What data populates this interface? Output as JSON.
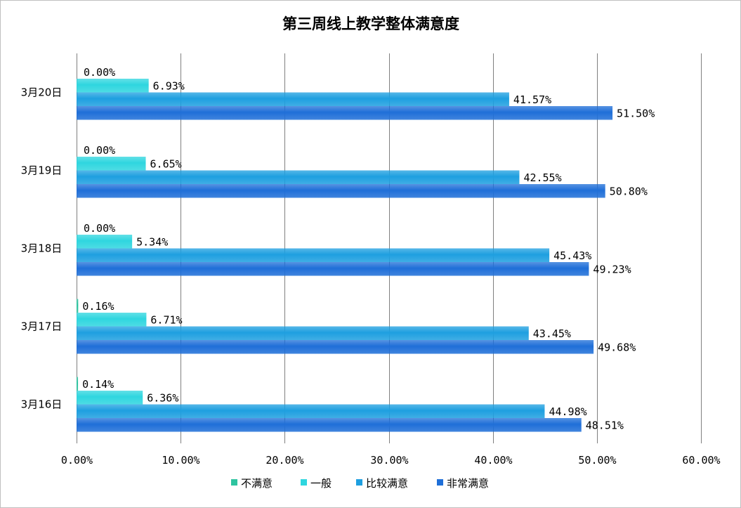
{
  "chart_data": {
    "type": "bar",
    "orientation": "horizontal",
    "title": "第三周线上教学整体满意度",
    "categories": [
      "3月20日",
      "3月19日",
      "3月18日",
      "3月17日",
      "3月16日"
    ],
    "series": [
      {
        "name": "不满意",
        "color": "#2ec4a0",
        "values": [
          0.0,
          0.0,
          0.0,
          0.16,
          0.14
        ],
        "labels": [
          "0.00%",
          "0.00%",
          "0.00%",
          "0.16%",
          "0.14%"
        ]
      },
      {
        "name": "一般",
        "color": "#2fd6df",
        "values": [
          6.93,
          6.65,
          5.34,
          6.71,
          6.36
        ],
        "labels": [
          "6.93%",
          "6.65%",
          "5.34%",
          "6.71%",
          "6.36%"
        ]
      },
      {
        "name": "比较满意",
        "color": "#1e9fe0",
        "values": [
          41.57,
          42.55,
          45.43,
          43.45,
          44.98
        ],
        "labels": [
          "41.57%",
          "42.55%",
          "45.43%",
          "43.45%",
          "44.98%"
        ]
      },
      {
        "name": "非常满意",
        "color": "#1f6fd8",
        "values": [
          51.5,
          50.8,
          49.23,
          49.68,
          48.51
        ],
        "labels": [
          "51.50%",
          "50.80%",
          "49.23%",
          "49.68%",
          "48.51%"
        ]
      }
    ],
    "xlim": [
      0,
      60
    ],
    "xticks": [
      0,
      10,
      20,
      30,
      40,
      50,
      60
    ],
    "xtick_labels": [
      "0.00%",
      "10.00%",
      "20.00%",
      "30.00%",
      "40.00%",
      "50.00%",
      "60.00%"
    ],
    "grid": true,
    "legend": "bottom"
  }
}
